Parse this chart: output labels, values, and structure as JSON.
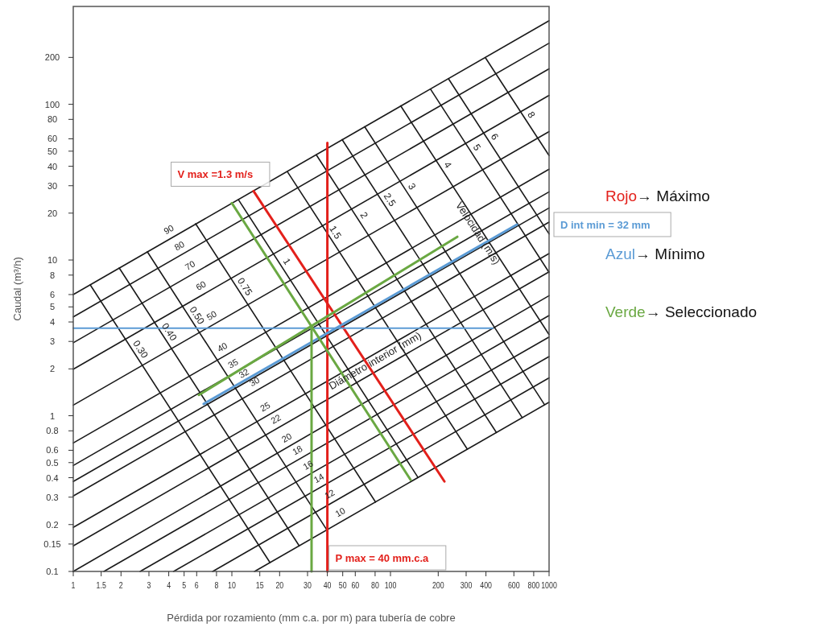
{
  "chart_data": {
    "type": "line",
    "xlabel": "Pérdida por rozamiento (mm c.a. por m) para tubería de cobre",
    "ylabel": "Caudal (m³/h)",
    "log": "xy",
    "xlim": [
      1,
      1000
    ],
    "ylim": [
      0.1,
      425
    ],
    "xticks": [
      1,
      1.5,
      2,
      3,
      4,
      5,
      6,
      8,
      10,
      15,
      20,
      30,
      40,
      50,
      60,
      80,
      100,
      200,
      300,
      400,
      600,
      800,
      1000
    ],
    "yticks": [
      0.1,
      0.15,
      0.2,
      0.3,
      0.4,
      0.5,
      0.6,
      0.8,
      1,
      2,
      3,
      4,
      5,
      6,
      8,
      10,
      20,
      30,
      40,
      50,
      60,
      80,
      100,
      200
    ],
    "grid": false,
    "legend": false,
    "marker": "none",
    "line_style": "solid",
    "series": [
      {
        "name": "90",
        "color": "#1a1a1a",
        "x": [
          1,
          1000
        ],
        "values": [
          6.0,
          344
        ]
      },
      {
        "name": "80",
        "color": "#1a1a1a",
        "x": [
          1,
          1000
        ],
        "values": [
          4.31,
          247
        ]
      },
      {
        "name": "70",
        "color": "#1a1a1a",
        "x": [
          1,
          1000
        ],
        "values": [
          2.94,
          169
        ]
      },
      {
        "name": "60",
        "color": "#1a1a1a",
        "x": [
          1,
          1000
        ],
        "values": [
          1.99,
          114
        ]
      },
      {
        "name": "50",
        "color": "#1a1a1a",
        "x": [
          1,
          1000
        ],
        "values": [
          1.17,
          66.8
        ]
      },
      {
        "name": "40",
        "color": "#1a1a1a",
        "x": [
          1,
          1000
        ],
        "values": [
          0.668,
          38.3
        ]
      },
      {
        "name": "35",
        "color": "#1a1a1a",
        "x": [
          1,
          1000
        ],
        "values": [
          0.479,
          27.4
        ]
      },
      {
        "name": "32",
        "color": "#1a1a1a",
        "x": [
          1,
          1000
        ],
        "values": [
          0.378,
          21.6
        ]
      },
      {
        "name": "30",
        "color": "#1a1a1a",
        "x": [
          1,
          1000
        ],
        "values": [
          0.305,
          17.5
        ]
      },
      {
        "name": "25",
        "color": "#1a1a1a",
        "x": [
          1,
          1000
        ],
        "values": [
          0.192,
          11.0
        ]
      },
      {
        "name": "22",
        "color": "#1a1a1a",
        "x": [
          1,
          1000
        ],
        "values": [
          0.146,
          8.4
        ]
      },
      {
        "name": "20",
        "color": "#1a1a1a",
        "x": [
          1,
          1000
        ],
        "values": [
          0.1,
          5.9
        ]
      },
      {
        "name": "18",
        "color": "#1a1a1a",
        "x": [
          1.56,
          1000
        ],
        "values": [
          0.1,
          4.4
        ]
      },
      {
        "name": "16",
        "color": "#1a1a1a",
        "x": [
          2.64,
          1000
        ],
        "values": [
          0.1,
          3.2
        ]
      },
      {
        "name": "14",
        "color": "#1a1a1a",
        "x": [
          4.29,
          1000
        ],
        "values": [
          0.1,
          2.4
        ]
      },
      {
        "name": "12",
        "color": "#1a1a1a",
        "x": [
          7.57,
          1000
        ],
        "values": [
          0.1,
          1.75
        ]
      },
      {
        "name": "10",
        "color": "#1a1a1a",
        "x": [
          13.9,
          1000
        ],
        "values": [
          0.1,
          1.22
        ]
      },
      {
        "name": "0.30",
        "color": "#1a1a1a",
        "x": [
          1.28,
          17.4
        ],
        "values": [
          6.92,
          0.114
        ]
      },
      {
        "name": "0.40",
        "color": "#1a1a1a",
        "x": [
          1.95,
          26.6
        ],
        "values": [
          8.88,
          0.146
        ]
      },
      {
        "name": "0.50",
        "color": "#1a1a1a",
        "x": [
          2.93,
          39.7
        ],
        "values": [
          11.3,
          0.185
        ]
      },
      {
        "name": "0.75",
        "color": "#1a1a1a",
        "x": [
          5.91,
          80.5
        ],
        "values": [
          17.1,
          0.279
        ]
      },
      {
        "name": "1",
        "color": "#1a1a1a",
        "x": [
          11.0,
          149
        ],
        "values": [
          24.4,
          0.402
        ]
      },
      {
        "name": "1.5",
        "color": "#1a1a1a",
        "x": [
          22.4,
          305
        ],
        "values": [
          36.9,
          0.61
        ]
      },
      {
        "name": "2",
        "color": "#1a1a1a",
        "x": [
          34.1,
          465
        ],
        "values": [
          47.3,
          0.781
        ]
      },
      {
        "name": "2.5",
        "color": "#1a1a1a",
        "x": [
          49.6,
          677
        ],
        "values": [
          59.3,
          0.973
        ]
      },
      {
        "name": "3",
        "color": "#1a1a1a",
        "x": [
          68.8,
          935
        ],
        "values": [
          71.7,
          1.18
        ]
      },
      {
        "name": "4",
        "color": "#1a1a1a",
        "x": [
          116,
          1000
        ],
        "values": [
          97.7,
          3.32
        ]
      },
      {
        "name": "5",
        "color": "#1a1a1a",
        "x": [
          179,
          1000
        ],
        "values": [
          125,
          8.32
        ]
      },
      {
        "name": "6",
        "color": "#1a1a1a",
        "x": [
          232,
          1000
        ],
        "values": [
          146,
          14.7
        ]
      },
      {
        "name": "8",
        "color": "#1a1a1a",
        "x": [
          397,
          1000
        ],
        "values": [
          199,
          46.9
        ]
      },
      {
        "name": "P max = 40 mm.c.a",
        "color": "#e3201b",
        "x": [
          40,
          40
        ],
        "values": [
          0.1,
          56.6
        ]
      },
      {
        "name": "V max =1.3 m/s",
        "color": "#e3201b",
        "x": [
          13.7,
          219
        ],
        "values": [
          27.7,
          0.378
        ]
      },
      {
        "name": "D int min = 32 mm",
        "color": "#5b9bd5",
        "x": [
          6.64,
          627
        ],
        "values": [
          1.19,
          16.9
        ]
      },
      {
        "color": "#5b9bd5",
        "x": [
          1,
          441
        ],
        "values": [
          3.65,
          3.65
        ]
      },
      {
        "color": "#6aa842",
        "x": [
          10.0,
          134
        ],
        "values": [
          23.2,
          0.387
        ]
      },
      {
        "color": "#6aa842",
        "x": [
          6.19,
          264
        ],
        "values": [
          1.36,
          14.1
        ]
      },
      {
        "color": "#6aa842",
        "x": [
          31.8,
          31.8
        ],
        "values": [
          0.1,
          3.69
        ]
      }
    ],
    "annotations": [
      "Velocidad (m/s)",
      "Diámetro interior (mm)",
      "Rojo→ Máximo",
      "Azul→ Mínimo",
      "Verde→ Seleccionado"
    ]
  }
}
